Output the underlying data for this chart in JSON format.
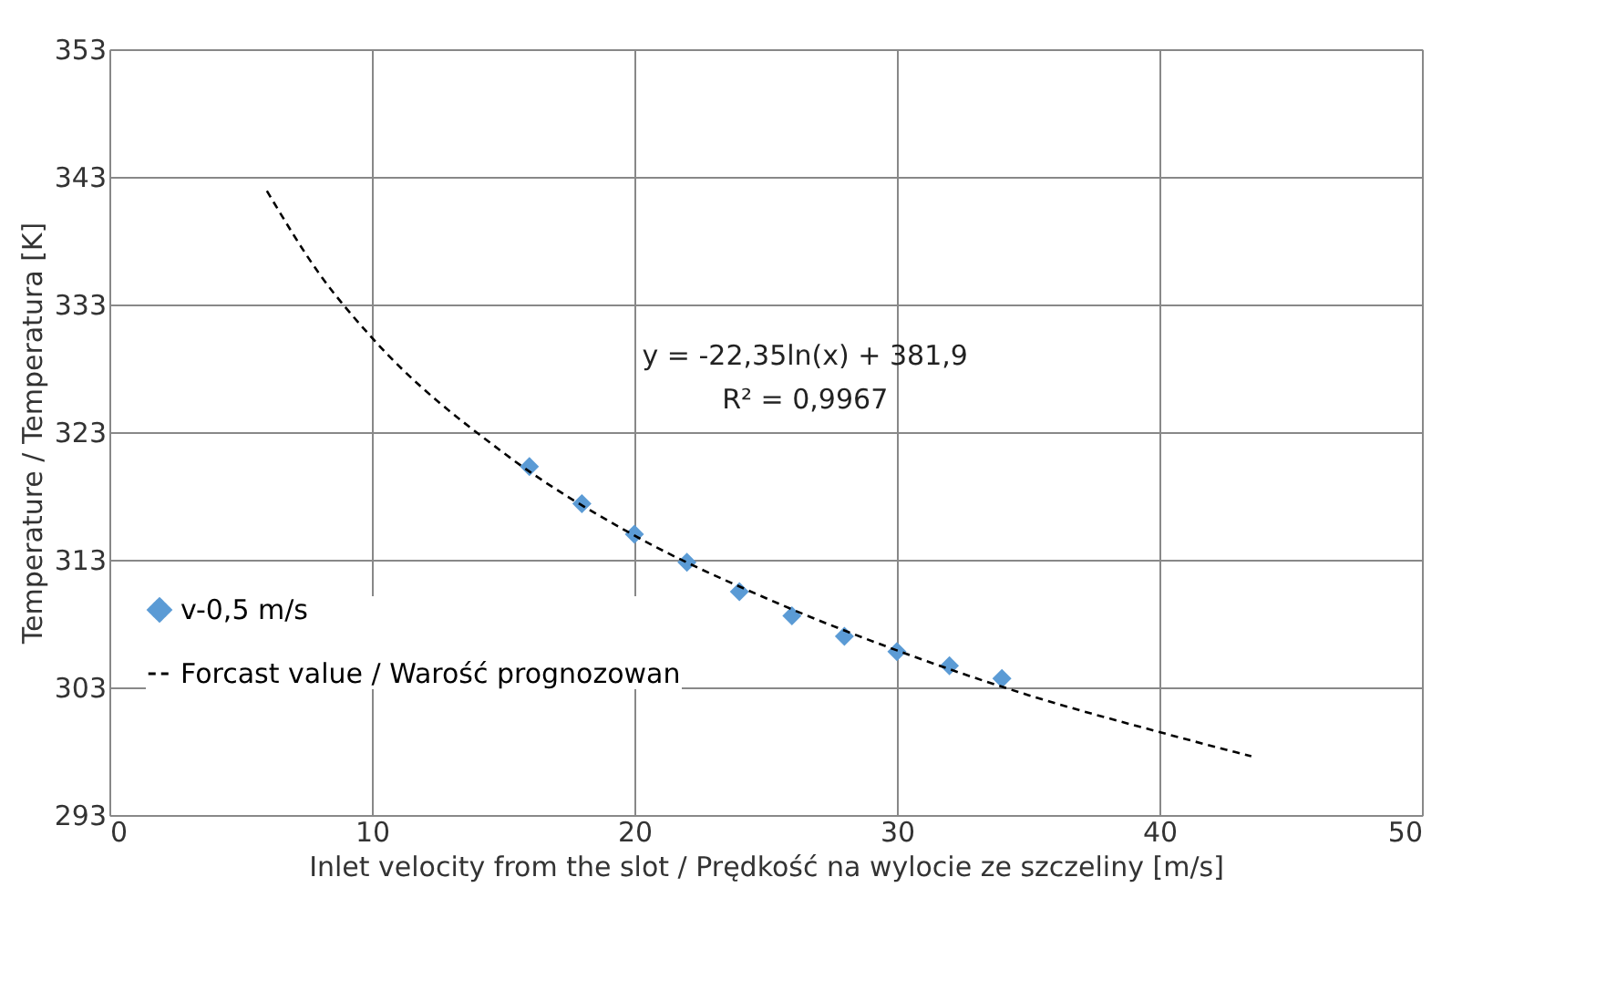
{
  "chart_data": {
    "type": "scatter",
    "xlabel": "Inlet velocity from the slot / Prędkość na wylocie ze szczeliny [m/s]",
    "ylabel": "Temperature  / Temperatura [K]",
    "x": [
      16,
      18,
      20,
      22,
      24,
      26,
      28,
      30,
      32,
      34
    ],
    "series": [
      {
        "name": "v-0,5 m/s",
        "color": "#5b9bd5",
        "marker": "diamond",
        "values": [
          320.3,
          317.4,
          315.0,
          312.8,
          310.5,
          308.6,
          307.0,
          305.8,
          304.7,
          303.7
        ]
      },
      {
        "name": "Forcast value / Warość prognozowan",
        "type": "line",
        "color": "#000000",
        "line_style": "dashed",
        "marker": "none",
        "x": [
          6,
          8,
          10,
          15,
          20,
          25,
          30,
          35,
          40,
          43.5
        ],
        "values": [
          341.9,
          335.4,
          330.4,
          321.4,
          314.9,
          310.0,
          305.9,
          302.4,
          299.5,
          297.6
        ]
      }
    ],
    "annotations": [
      "y = -22,35ln(x) + 381,9",
      "R² = 0,9967"
    ],
    "xlim": [
      0,
      50
    ],
    "xticks": [
      0,
      10,
      20,
      30,
      40,
      50
    ],
    "ylim": [
      293,
      353
    ],
    "yticks": [
      293,
      303,
      313,
      323,
      333,
      343,
      353
    ],
    "grid": true,
    "legend": "bottom left"
  }
}
